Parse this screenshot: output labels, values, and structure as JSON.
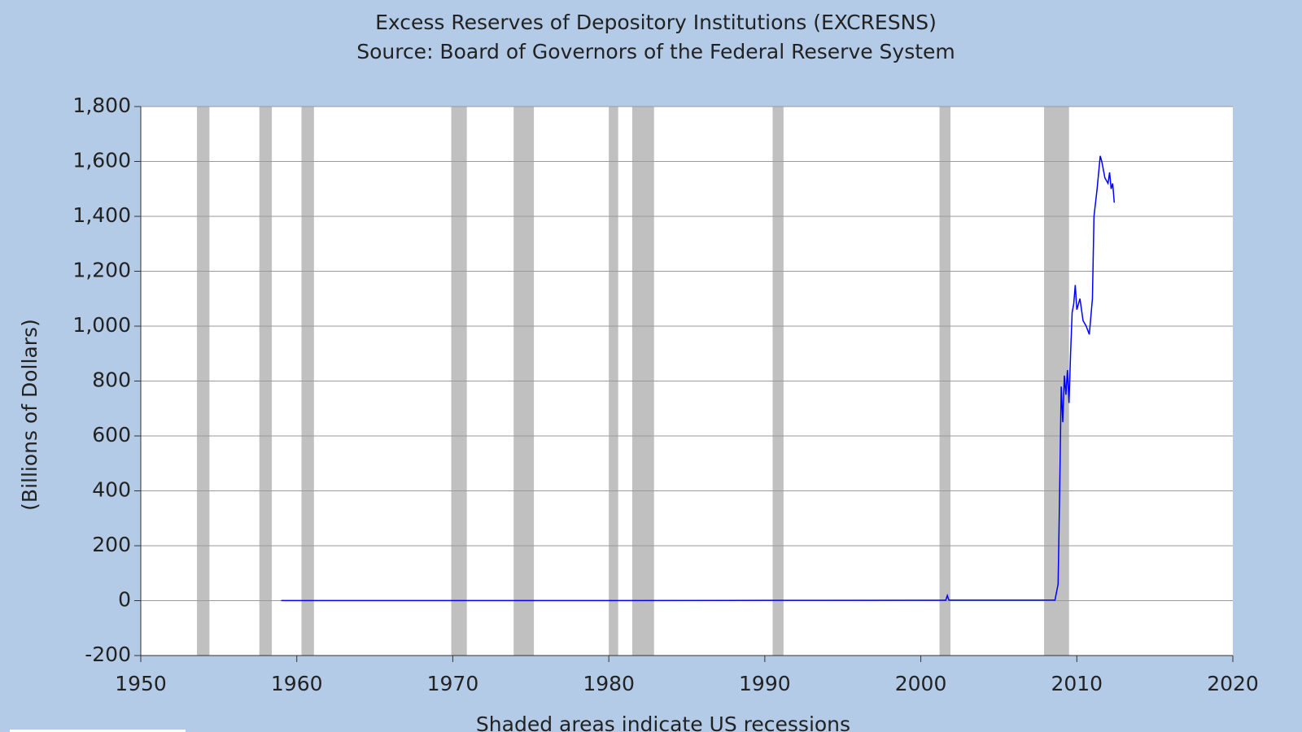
{
  "chart_data": {
    "type": "line",
    "title": "Excess Reserves of Depository Institutions (EXCRESNS)",
    "subtitle": "Source: Board of Governors of the Federal Reserve System",
    "y_label": "(Billions of Dollars)",
    "note": "Shaded areas indicate US recessions",
    "x": [
      1959,
      1970,
      1980,
      1990,
      2001.6,
      2001.7,
      2001.8,
      2008.6,
      2008.8,
      2008.9,
      2009.0,
      2009.1,
      2009.2,
      2009.3,
      2009.4,
      2009.5,
      2009.6,
      2009.7,
      2009.8,
      2009.9,
      2010.0,
      2010.2,
      2010.4,
      2010.6,
      2010.8,
      2011.0,
      2011.1,
      2011.3,
      2011.5,
      2011.6,
      2011.8,
      2012.0,
      2012.1,
      2012.2,
      2012.3,
      2012.4
    ],
    "series": [
      {
        "name": "EXCRESNS",
        "color": "#0000ff",
        "values": [
          0.5,
          0.2,
          0.5,
          1,
          1.5,
          19,
          2,
          2,
          60,
          400,
          780,
          650,
          820,
          750,
          840,
          720,
          900,
          1050,
          1080,
          1150,
          1060,
          1100,
          1020,
          1000,
          970,
          1100,
          1400,
          1500,
          1620,
          1600,
          1540,
          1520,
          1560,
          1500,
          1520,
          1450
        ]
      }
    ],
    "recessions": [
      [
        1953.6,
        1954.4
      ],
      [
        1957.6,
        1958.4
      ],
      [
        1960.3,
        1961.1
      ],
      [
        1969.9,
        1970.9
      ],
      [
        1973.9,
        1975.2
      ],
      [
        1980.0,
        1980.6
      ],
      [
        1981.5,
        1982.9
      ],
      [
        1990.5,
        1991.2
      ],
      [
        2001.2,
        2001.9
      ],
      [
        2007.9,
        2009.5
      ]
    ],
    "recession_color": "#c0c0c0",
    "xlim": [
      1950,
      2020
    ],
    "xticks": [
      1950,
      1960,
      1970,
      1980,
      1990,
      2000,
      2010,
      2020
    ],
    "ylim": [
      -200,
      1800
    ],
    "yticks": [
      -200,
      0,
      200,
      400,
      600,
      800,
      {
        "value": 1000,
        "label": "1,000"
      },
      {
        "value": 1200,
        "label": "1,200"
      },
      {
        "value": 1400,
        "label": "1,400"
      },
      {
        "value": 1600,
        "label": "1,600"
      },
      {
        "value": 1800,
        "label": "1,800"
      }
    ],
    "grid": true
  }
}
